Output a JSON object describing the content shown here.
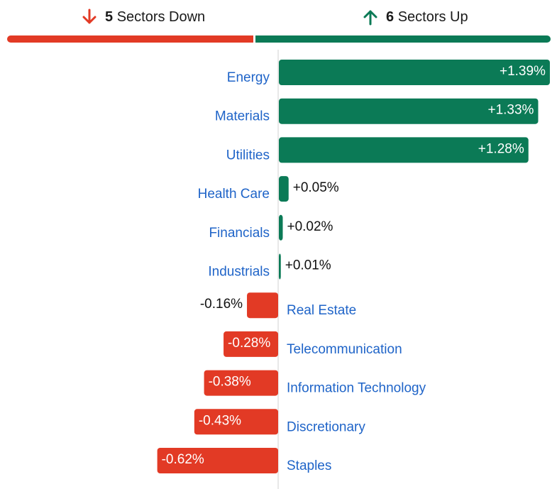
{
  "header": {
    "down": {
      "count": "5",
      "label": "Sectors Down",
      "icon": "arrow-down-icon"
    },
    "up": {
      "count": "6",
      "label": "Sectors Up",
      "icon": "arrow-up-icon"
    }
  },
  "colors": {
    "positive": "#0b7a56",
    "negative": "#e23a25",
    "category_label": "#1f64c8",
    "value_label_dark": "#111111",
    "value_label_light": "#ffffff",
    "axis": "#d0d0d0"
  },
  "chart_data": {
    "type": "bar",
    "orientation": "horizontal-diverging",
    "categories": [
      "Energy",
      "Materials",
      "Utilities",
      "Health Care",
      "Financials",
      "Industrials",
      "Real Estate",
      "Telecommunication",
      "Information Technology",
      "Discretionary",
      "Staples"
    ],
    "values": [
      1.39,
      1.33,
      1.28,
      0.05,
      0.02,
      0.01,
      -0.16,
      -0.28,
      -0.38,
      -0.43,
      -0.62
    ],
    "labels": [
      "+1.39%",
      "+1.33%",
      "+1.28%",
      "+0.05%",
      "+0.02%",
      "+0.01%",
      "-0.16%",
      "-0.28%",
      "-0.38%",
      "-0.43%",
      "-0.62%"
    ],
    "unit": "%"
  }
}
